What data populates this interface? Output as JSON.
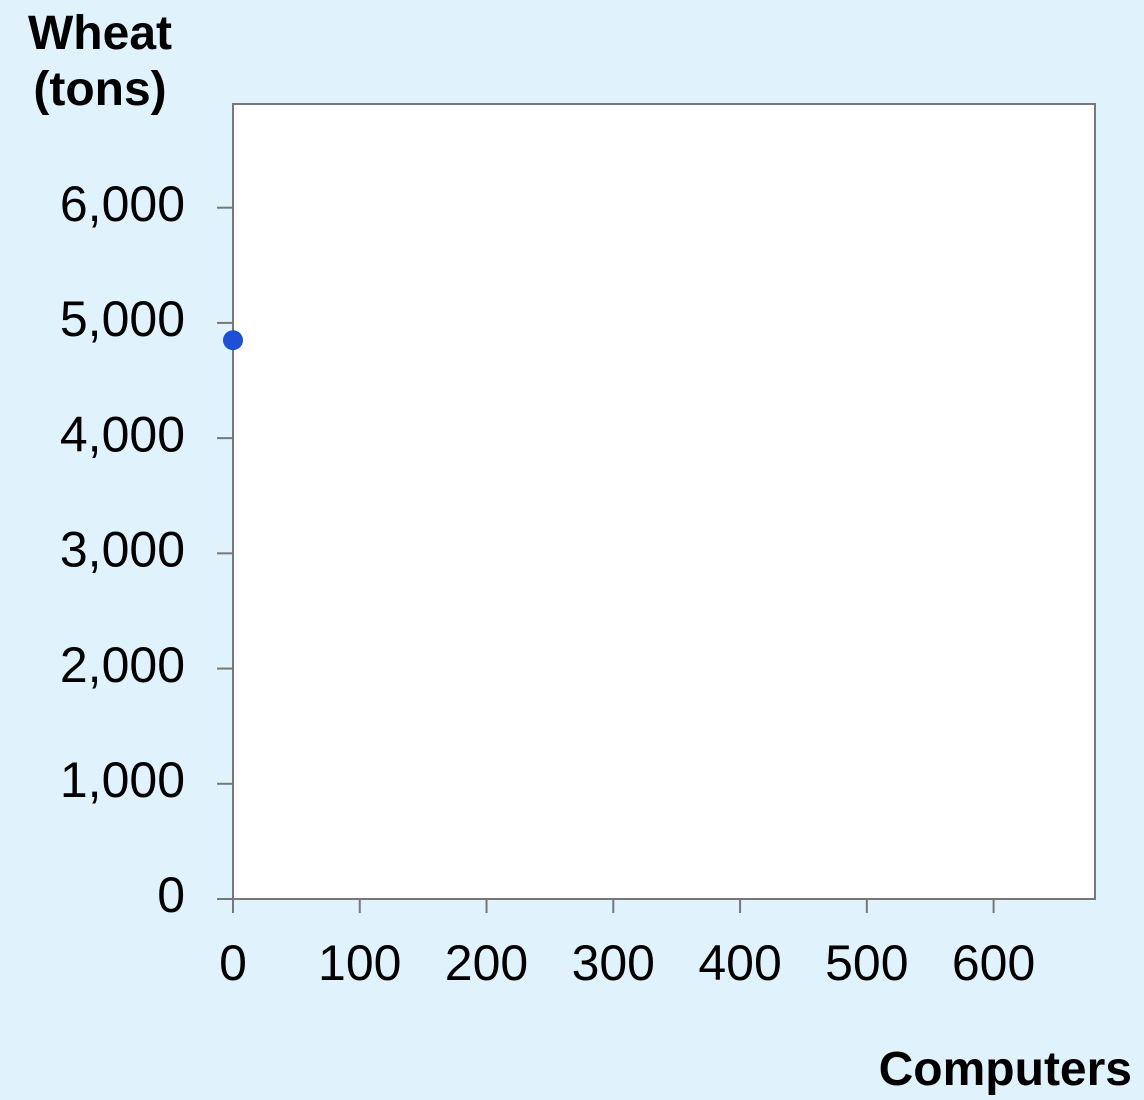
{
  "chart_data": {
    "type": "scatter",
    "y_label": "Wheat (tons)",
    "x_label": "Computers",
    "series": [
      {
        "color": "#1f4fd6",
        "x": [
          0
        ],
        "values": [
          4850
        ]
      }
    ],
    "xlim": [
      0,
      680
    ],
    "xticks": [
      0,
      100,
      200,
      300,
      400,
      500,
      600
    ],
    "ylim": [
      0,
      6900
    ],
    "yticks": [
      0,
      {
        "value": 1000,
        "label": "1,000"
      },
      {
        "value": 2000,
        "label": "2,000"
      },
      {
        "value": 3000,
        "label": "3,000"
      },
      {
        "value": 4000,
        "label": "4,000"
      },
      {
        "value": 5000,
        "label": "5,000"
      },
      {
        "value": 6000,
        "label": "6,000"
      }
    ],
    "grid": false
  }
}
